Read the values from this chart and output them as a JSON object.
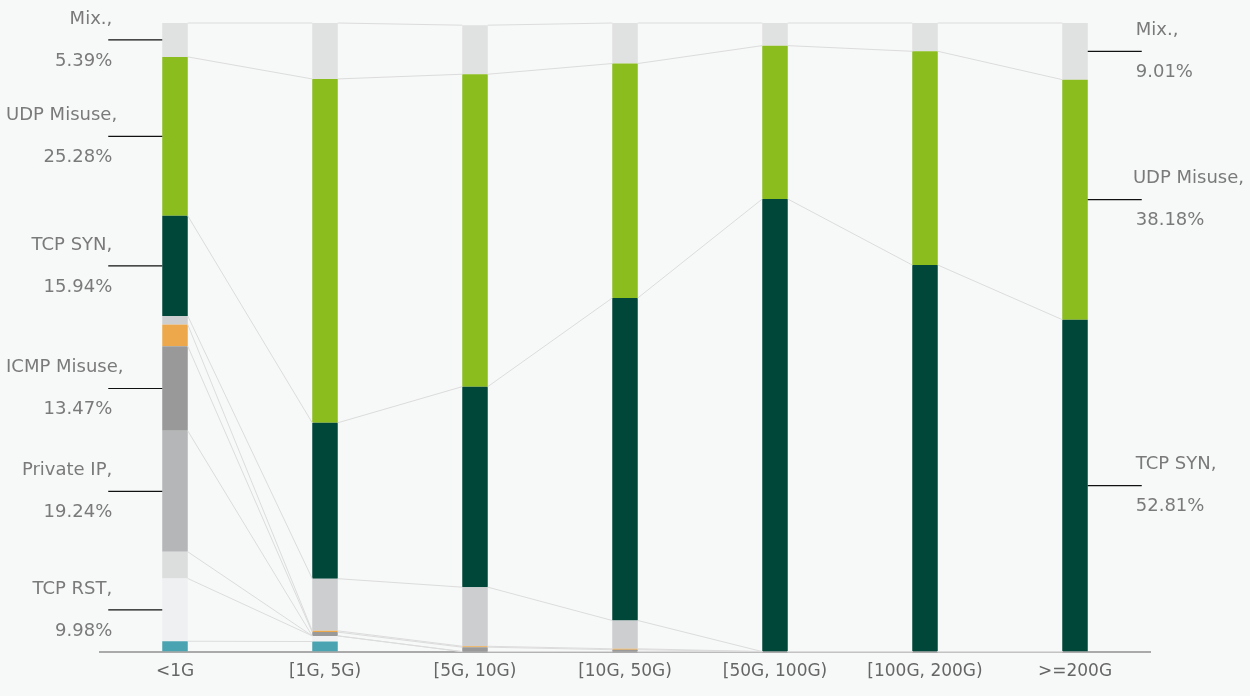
{
  "chart_data": {
    "type": "bar",
    "stacked": true,
    "categories": [
      "<1G",
      "[1G, 5G)",
      "[5G, 10G)",
      "[10G, 50G)",
      "[50G, 100G)",
      "[100G, 200G)",
      ">=200G"
    ],
    "ylim": [
      0,
      100
    ],
    "tick_labels": "x",
    "grid": false,
    "legend": false,
    "series": [
      {
        "color": "#4aa3b0",
        "values": [
          1.65,
          1.6,
          null,
          0,
          0,
          0,
          0
        ]
      },
      {
        "name": "TCP RST,",
        "color": "#eef0f2",
        "values": [
          9.98,
          0.9,
          null,
          0,
          0,
          0,
          0
        ],
        "value_labels": [
          "9.98%",
          null,
          null,
          null,
          null,
          null,
          null
        ]
      },
      {
        "color": "#dcdddd",
        "values": [
          4.25,
          0,
          0,
          0,
          0,
          0,
          0
        ]
      },
      {
        "name": "Private IP,",
        "color": "#b5b6b7",
        "values": [
          19.24,
          0,
          0,
          0,
          0,
          0,
          0
        ],
        "value_labels": [
          "19.24%",
          null,
          null,
          null,
          null,
          null,
          null
        ]
      },
      {
        "name": "ICMP Misuse,",
        "color": "#999999",
        "values": [
          13.47,
          0.6,
          0.7,
          0.3,
          0,
          0,
          0
        ],
        "value_labels": [
          "13.47%",
          null,
          null,
          null,
          null,
          null,
          null
        ]
      },
      {
        "color": "#eca84a",
        "values": [
          3.43,
          0.2,
          0.15,
          0.15,
          0,
          0,
          0
        ]
      },
      {
        "color": "#cdcecf",
        "values": [
          1.37,
          8.3,
          9.4,
          4.5,
          0,
          0,
          0
        ]
      },
      {
        "name": "TCP SYN,",
        "color": "#00473a",
        "values": [
          15.94,
          24.8,
          31.9,
          51.3,
          72.0,
          61.5,
          52.81
        ],
        "value_labels": [
          "15.94%",
          null,
          null,
          null,
          null,
          null,
          "52.81%"
        ]
      },
      {
        "name": "UDP Misuse,",
        "color": "#8bbd1f",
        "values": [
          25.28,
          54.7,
          49.7,
          37.3,
          24.4,
          34.0,
          38.18
        ],
        "value_labels": [
          "25.28%",
          null,
          null,
          null,
          null,
          null,
          "38.18%"
        ]
      },
      {
        "name": "Mix.,",
        "color": "#e0e1e1",
        "values": [
          5.39,
          8.9,
          7.8,
          6.45,
          3.6,
          4.5,
          9.01
        ],
        "value_labels": [
          "5.39%",
          null,
          null,
          null,
          null,
          null,
          "9.01%"
        ]
      }
    ]
  }
}
